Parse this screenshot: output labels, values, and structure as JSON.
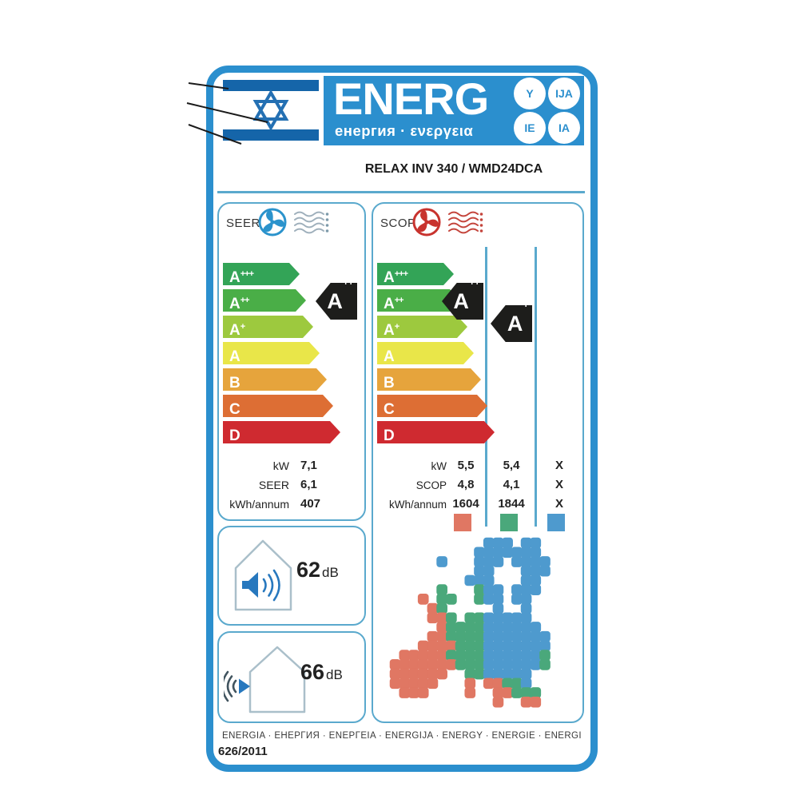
{
  "colors": {
    "label_blue": "#2b8fce",
    "box_border": "#5aa9cd",
    "flag_blue": "#1565a9",
    "class_colors": [
      "#33a457",
      "#4aae47",
      "#9dc93e",
      "#e9e649",
      "#e6a43c",
      "#dd6e34",
      "#cf2a30"
    ],
    "zone_colors": {
      "warm": "#e07763",
      "average": "#4aa87b",
      "cold": "#4e9ace"
    }
  },
  "header": {
    "energ": "ENERG",
    "subtitle": "енергия · ενεργεια",
    "circles": [
      "Y",
      "IJA",
      "IE",
      "IA"
    ]
  },
  "model": "RELAX INV 340 / WMD24DCA",
  "classes": [
    {
      "letter": "A",
      "sup": "+++"
    },
    {
      "letter": "A",
      "sup": "++"
    },
    {
      "letter": "A",
      "sup": "+"
    },
    {
      "letter": "A",
      "sup": ""
    },
    {
      "letter": "B",
      "sup": ""
    },
    {
      "letter": "C",
      "sup": ""
    },
    {
      "letter": "D",
      "sup": ""
    }
  ],
  "seer": {
    "title": "SEER",
    "rating": {
      "letter": "A",
      "sup": "++"
    },
    "rows": [
      {
        "label": "kW",
        "value": "7,1"
      },
      {
        "label": "SEER",
        "value": "6,1"
      },
      {
        "label": "kWh/annum",
        "value": "407"
      }
    ]
  },
  "scop": {
    "title": "SCOP",
    "rating_zone1": {
      "letter": "A",
      "sup": "++"
    },
    "rating_zone2": {
      "letter": "A",
      "sup": "+"
    },
    "rows": [
      {
        "label": "kW",
        "v1": "5,5",
        "v2": "5,4",
        "v3": "X"
      },
      {
        "label": "SCOP",
        "v1": "4,8",
        "v2": "4,1",
        "v3": "X"
      },
      {
        "label": "kWh/annum",
        "v1": "1604",
        "v2": "1844",
        "v3": "X"
      }
    ]
  },
  "noise": {
    "indoor": {
      "value": "62",
      "unit": "dB"
    },
    "outdoor": {
      "value": "66",
      "unit": "dB"
    }
  },
  "footer": {
    "words": "ENERGIA · ЕНЕРГИЯ · ΕΝΕΡΓΕΙΑ · ENERGIJA · ENERGY · ENERGIE · ENERGI",
    "regulation": "626/2011"
  },
  "map": {
    "cell": 12,
    "palette": {
      "R": "#e07763",
      "G": "#4aa87b",
      "B": "#4e9ace"
    },
    "grid": [
      "...........BBB.BB....",
      "..........BBBBBBB....",
      "......B...BBB.BBBB...",
      "..........BB...BBB...",
      ".........BBB...BB....",
      "......G...GBB.BBB....",
      "....R.GG..GBB.BB.....",
      ".....RG.....B..B.....",
      ".....RRG.GGBBBBB.....",
      "......RGGGGBBBBBB....",
      ".....RRGGGGBBBBBBB...",
      "....RRRRGGGBBBBBBB...",
      "..RRRRRGGGGBBBBBBG...",
      ".RRRRRRRGGGBBBBBBG...",
      ".RRRRRR..GGBBBBB.....",
      ".RRRRR...R.RRGGB.....",
      "..RRR....R..RRGGG....",
      "............R..RR....",
      "....................."
    ]
  }
}
